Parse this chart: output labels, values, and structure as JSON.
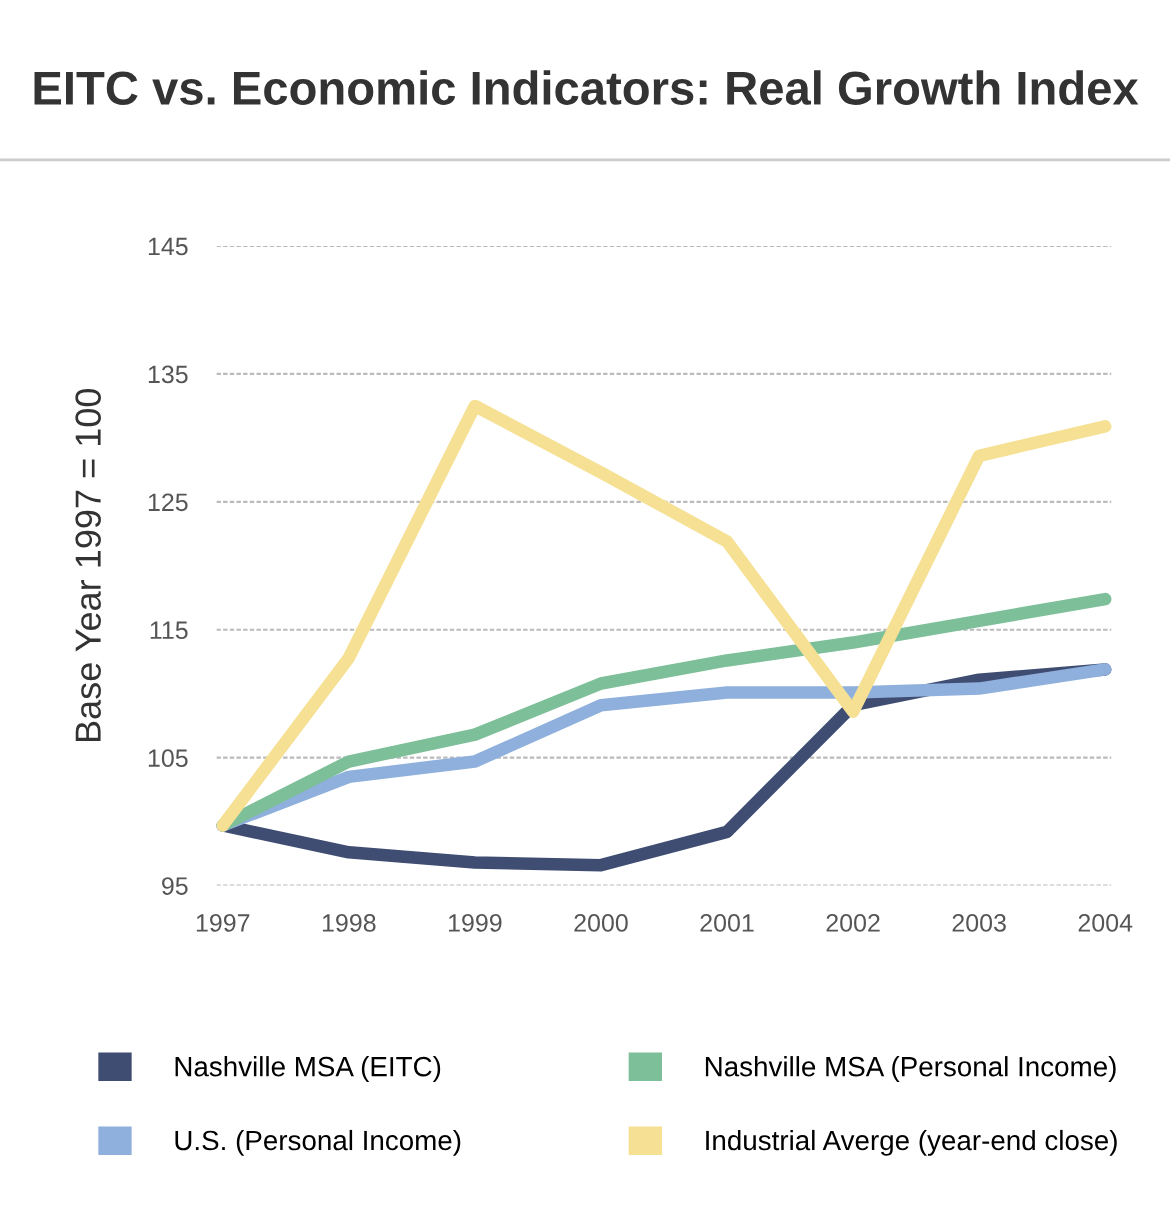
{
  "chart_data": {
    "type": "line",
    "title": "EITC vs. Economic Indicators: Real Growth Index",
    "ylabel": "Base Year 1997 = 100",
    "categories": [
      "1997",
      "1998",
      "1999",
      "2000",
      "2001",
      "2002",
      "2003",
      "2004"
    ],
    "series": [
      {
        "name": "Nashville MSA (EITC)",
        "color": "#3f4d72",
        "values": [
          99.7,
          97.6,
          96.8,
          96.6,
          99.2,
          109.1,
          111.1,
          111.9
        ]
      },
      {
        "name": "U.S. (Personal Income)",
        "color": "#8fb0dc",
        "values": [
          99.7,
          103.5,
          104.7,
          109.1,
          110.1,
          110.1,
          110.4,
          111.9
        ]
      },
      {
        "name": "Nashville MSA (Personal Income)",
        "color": "#7cbf98",
        "values": [
          99.7,
          104.7,
          106.8,
          110.8,
          112.6,
          114.0,
          115.7,
          117.4
        ]
      },
      {
        "name": "Industrial Averge (year-end close)",
        "color": "#f5e094",
        "values": [
          99.7,
          112.8,
          132.5,
          127.3,
          121.9,
          108.6,
          128.6,
          130.9
        ]
      }
    ],
    "ylim": [
      95,
      145
    ],
    "yticks": [
      95,
      105,
      115,
      125,
      135,
      145
    ],
    "grid": "y",
    "legend": "bottom",
    "marker": "none",
    "line_style": "solid"
  }
}
